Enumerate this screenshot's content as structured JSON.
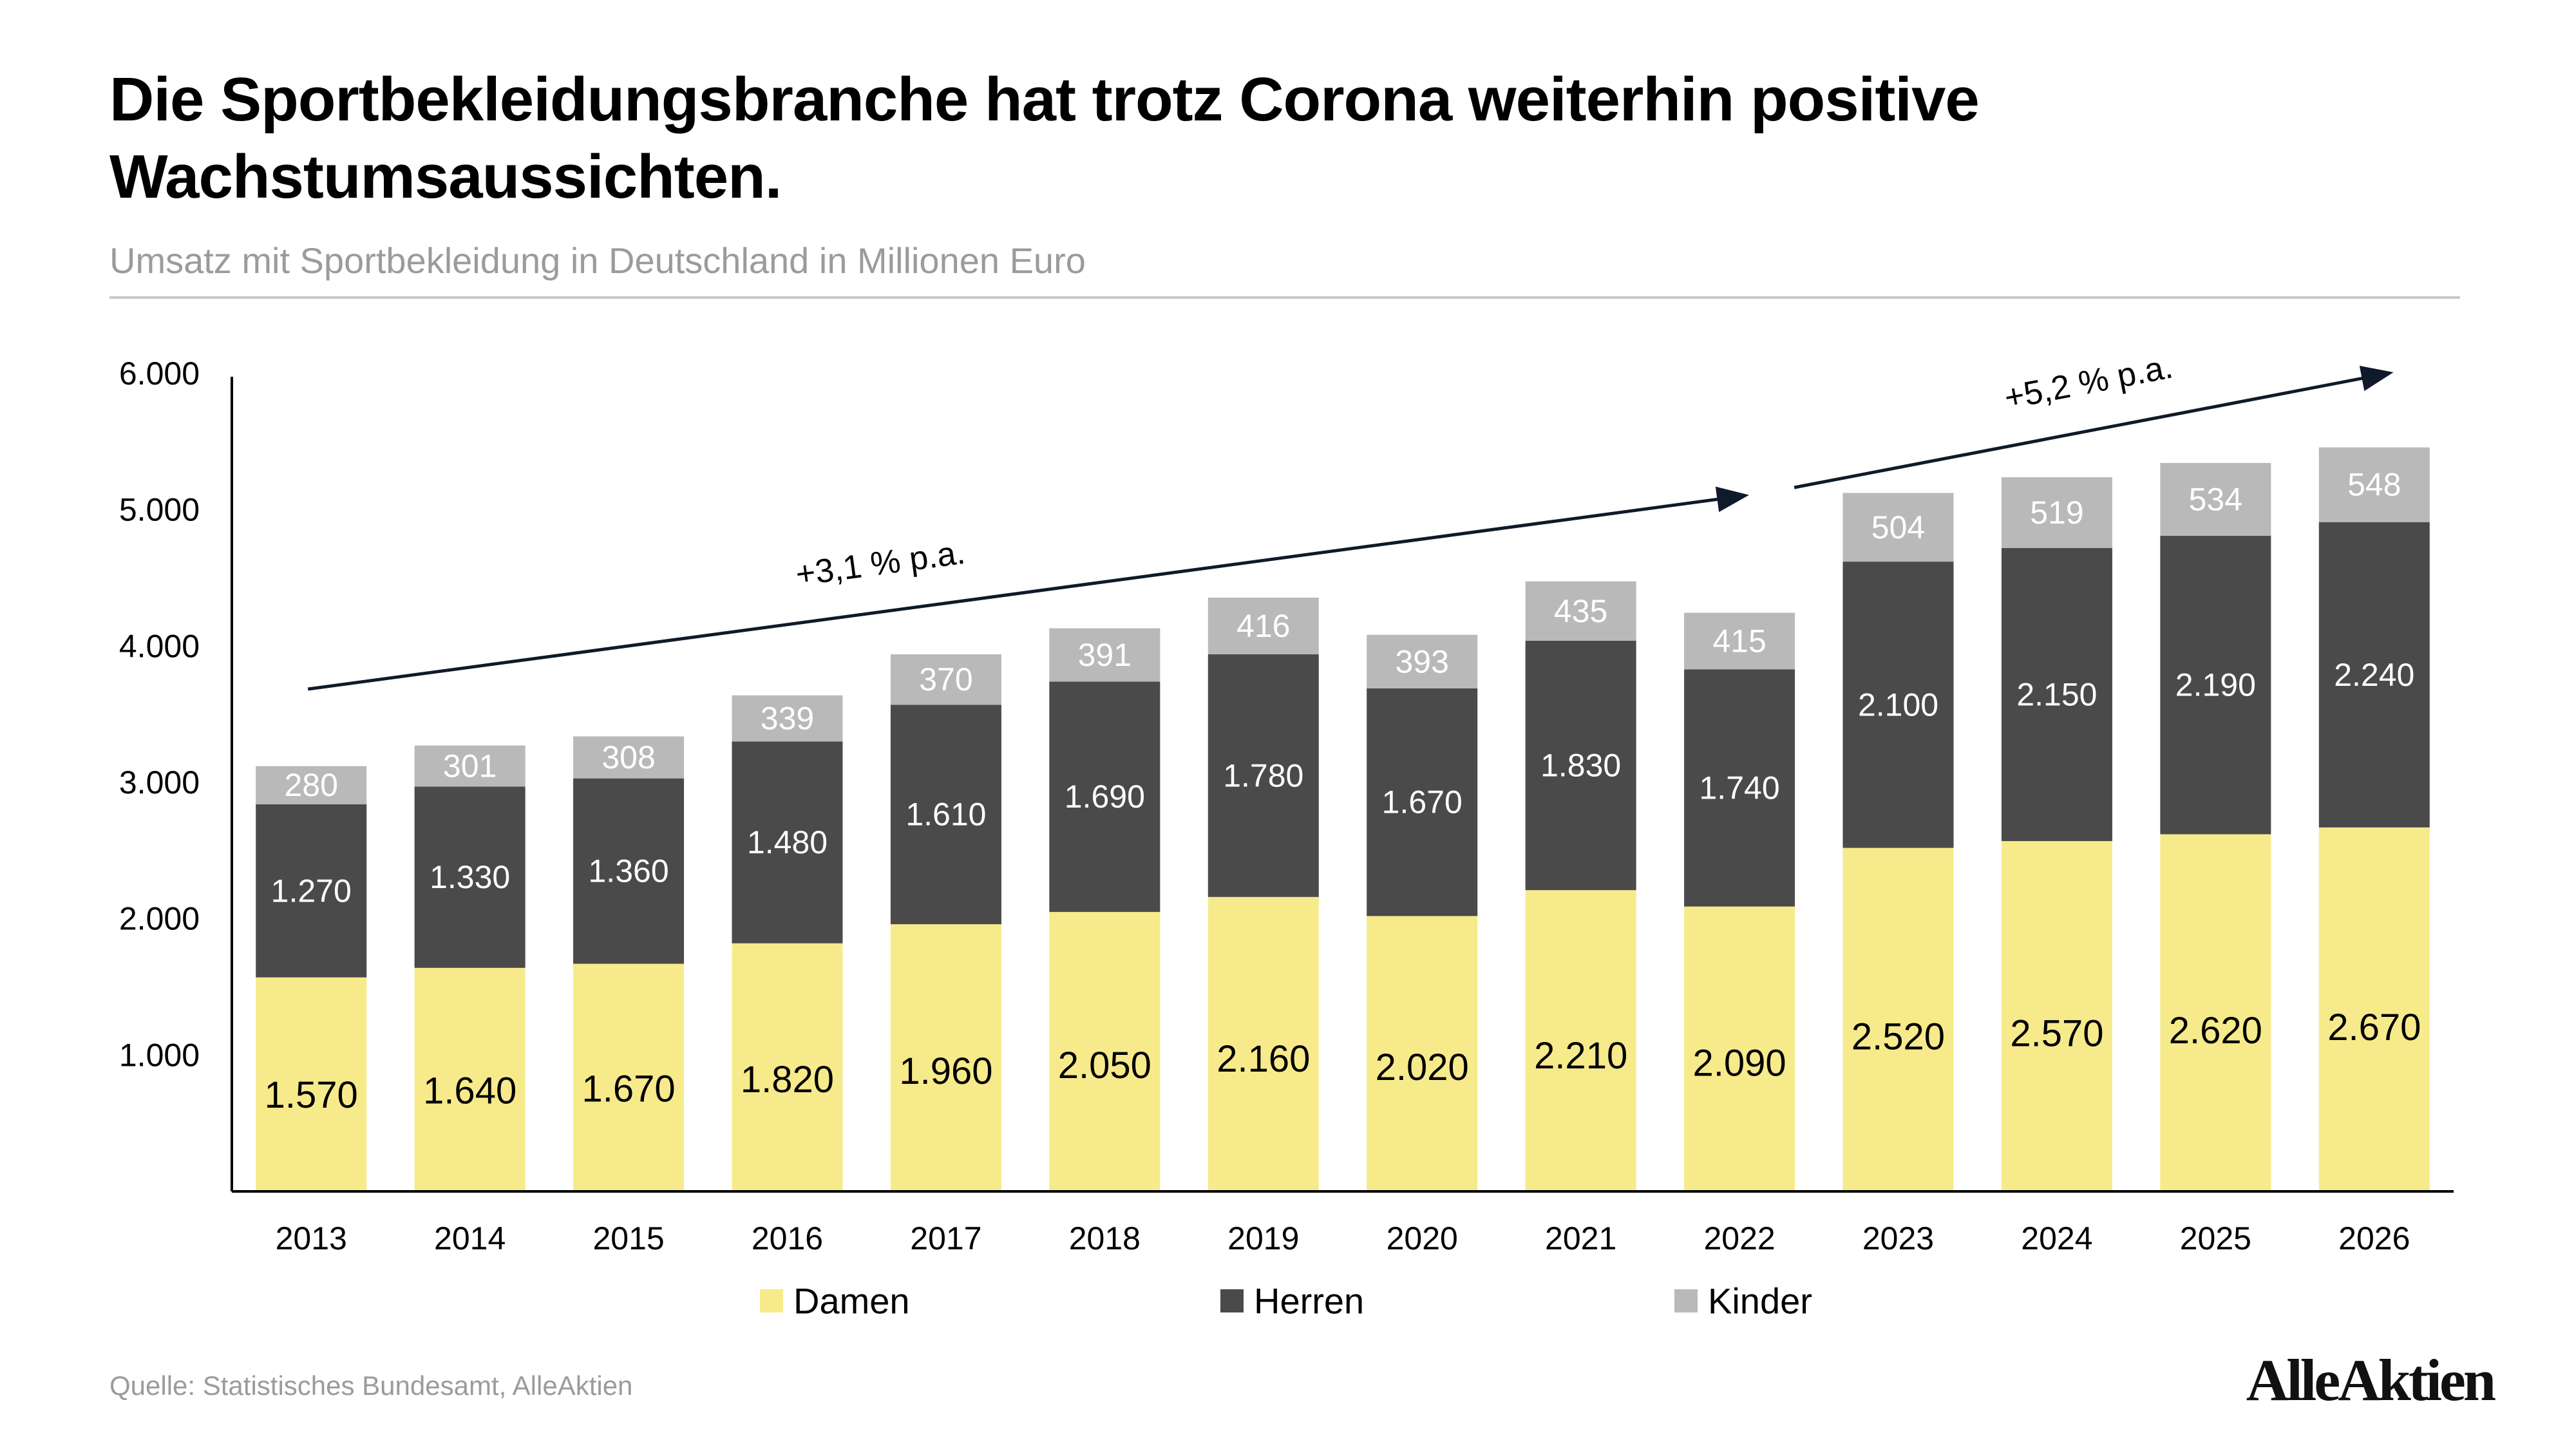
{
  "title": "Die Sportbekleidungsbranche hat trotz Corona weiterhin positive Wachstumsaussichten.",
  "subtitle": "Umsatz mit Sportbekleidung in Deutschland in Millionen Euro",
  "source": "Quelle: Statistisches Bundesamt, AlleAktien",
  "logo": "AlleAktien",
  "chart_data": {
    "type": "bar",
    "stacked": true,
    "categories": [
      "2013",
      "2014",
      "2015",
      "2016",
      "2017",
      "2018",
      "2019",
      "2020",
      "2021",
      "2022",
      "2023",
      "2024",
      "2025",
      "2026"
    ],
    "series": [
      {
        "name": "Damen",
        "color": "#f7ea8a",
        "labels": [
          "1.570",
          "1.640",
          "1.670",
          "1.820",
          "1.960",
          "2.050",
          "2.160",
          "2.020",
          "2.210",
          "2.090",
          "2.520",
          "2.570",
          "2.620",
          "2.670"
        ],
        "values": [
          1570,
          1640,
          1670,
          1820,
          1960,
          2050,
          2160,
          2020,
          2210,
          2090,
          2520,
          2570,
          2620,
          2670
        ]
      },
      {
        "name": "Herren",
        "color": "#4a4a4a",
        "labels": [
          "1.270",
          "1.330",
          "1.360",
          "1.480",
          "1.610",
          "1.690",
          "1.780",
          "1.670",
          "1.830",
          "1.740",
          "2.100",
          "2.150",
          "2.190",
          "2.240"
        ],
        "values": [
          1270,
          1330,
          1360,
          1480,
          1610,
          1690,
          1780,
          1670,
          1830,
          1740,
          2100,
          2150,
          2190,
          2240
        ]
      },
      {
        "name": "Kinder",
        "color": "#b9b9b9",
        "labels": [
          "280",
          "301",
          "308",
          "339",
          "370",
          "391",
          "416",
          "393",
          "435",
          "415",
          "504",
          "519",
          "534",
          "548"
        ],
        "values": [
          280,
          301,
          308,
          339,
          370,
          391,
          416,
          393,
          435,
          415,
          504,
          519,
          534,
          548
        ]
      }
    ],
    "ylim": [
      0,
      6000
    ],
    "yticks": [
      {
        "value": 1000,
        "label": "1.000"
      },
      {
        "value": 2000,
        "label": "2.000"
      },
      {
        "value": 3000,
        "label": "3.000"
      },
      {
        "value": 4000,
        "label": "4.000"
      },
      {
        "value": 5000,
        "label": "5.000"
      },
      {
        "value": 6000,
        "label": "6.000"
      }
    ],
    "grid": false,
    "legend": "bottom-center",
    "annotations": [
      {
        "text": "+3,1 % p.a.",
        "from_category": "2013",
        "to_category": "2022"
      },
      {
        "text": "+5,2 % p.a.",
        "from_category": "2022",
        "to_category": "2026"
      }
    ]
  }
}
